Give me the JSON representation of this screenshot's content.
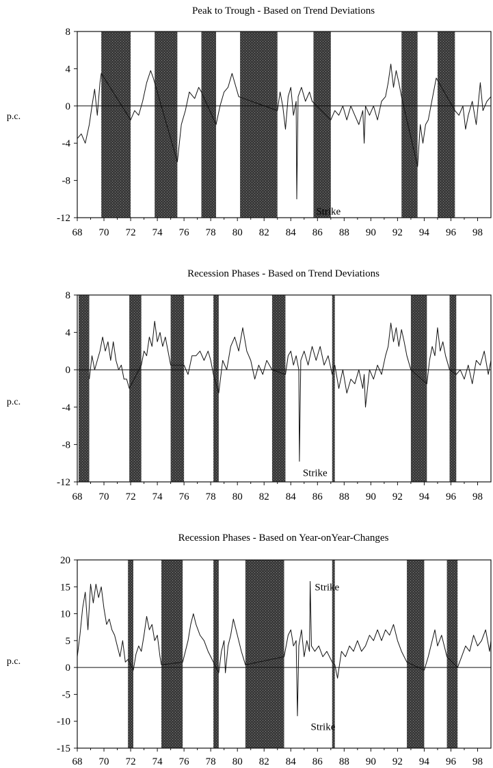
{
  "chart_data": [
    {
      "type": "line",
      "title": "Peak to Trough - Based on Trend Deviations",
      "ylabel": "p.c.",
      "xlim": [
        1968,
        1999
      ],
      "ylim": [
        -12,
        8
      ],
      "yticks": [
        8,
        4,
        0,
        -4,
        -8,
        -12
      ],
      "xticks": [
        68,
        70,
        72,
        74,
        76,
        78,
        80,
        82,
        84,
        86,
        88,
        90,
        92,
        94,
        96,
        98
      ],
      "zero_line": true,
      "shaded_periods": [
        [
          1969.8,
          1972.0
        ],
        [
          1973.8,
          1975.5
        ],
        [
          1977.3,
          1978.4
        ],
        [
          1980.2,
          1983.0
        ],
        [
          1985.7,
          1987.0
        ],
        [
          1992.3,
          1993.5
        ],
        [
          1995.0,
          1996.3
        ]
      ],
      "annotations": [
        {
          "text": "Strike",
          "x": 1985.9,
          "y": -11.3
        }
      ],
      "series": [
        {
          "x": [
            1968.0,
            1968.3,
            1968.6,
            1968.9,
            1969.1,
            1969.3,
            1969.5,
            1969.7,
            1969.8,
            1972.0,
            1972.3,
            1972.6,
            1972.9,
            1973.2,
            1973.5,
            1973.7,
            1975.5,
            1975.8,
            1976.1,
            1976.4,
            1976.8,
            1977.1,
            1977.3,
            1978.4,
            1978.7,
            1979.0,
            1979.3,
            1979.6,
            1979.9,
            1980.1,
            1983.0,
            1983.2,
            1983.4,
            1983.6,
            1983.8,
            1984.0,
            1984.2,
            1984.4,
            1984.45,
            1984.55,
            1984.8,
            1985.1,
            1985.4,
            1985.6,
            1987.0,
            1987.3,
            1987.6,
            1987.9,
            1988.2,
            1988.5,
            1988.8,
            1989.1,
            1989.4,
            1989.5,
            1989.6,
            1989.9,
            1990.2,
            1990.5,
            1990.8,
            1991.1,
            1991.3,
            1991.5,
            1991.7,
            1991.9,
            1992.1,
            1992.3,
            1993.5,
            1993.7,
            1993.9,
            1994.1,
            1994.3,
            1994.5,
            1994.7,
            1994.9,
            1996.3,
            1996.6,
            1996.9,
            1997.1,
            1997.3,
            1997.6,
            1997.9,
            1998.2,
            1998.4,
            1998.7,
            1999.0
          ],
          "y": [
            -3.5,
            -3.0,
            -4.0,
            -2.0,
            0.0,
            1.8,
            -1.0,
            2.5,
            3.5,
            -1.5,
            -0.5,
            -1.0,
            0.5,
            2.5,
            3.8,
            3.0,
            -6.0,
            -2.0,
            -0.5,
            1.5,
            0.8,
            2.0,
            1.5,
            -2.0,
            0.0,
            1.5,
            2.0,
            3.5,
            2.0,
            1.0,
            -0.5,
            1.5,
            0.0,
            -2.5,
            1.0,
            2.0,
            -1.0,
            0.5,
            -10.0,
            1.0,
            2.0,
            0.5,
            1.5,
            0.5,
            -1.5,
            -0.5,
            -1.0,
            0.0,
            -1.5,
            0.0,
            -1.0,
            -2.0,
            -0.5,
            -4.0,
            0.0,
            -1.0,
            0.0,
            -1.5,
            0.5,
            1.0,
            2.5,
            4.5,
            2.0,
            3.8,
            2.5,
            1.0,
            -6.5,
            -2.0,
            -4.0,
            -2.0,
            -1.5,
            0.0,
            1.5,
            3.0,
            -0.5,
            -1.0,
            0.0,
            -2.5,
            -1.0,
            0.5,
            -2.0,
            2.5,
            -0.5,
            0.5,
            1.0
          ]
        }
      ]
    },
    {
      "type": "line",
      "title": "Recession Phases - Based on Trend Deviations",
      "ylabel": "p.c.",
      "xlim": [
        1968,
        1999
      ],
      "ylim": [
        -12,
        8
      ],
      "yticks": [
        8,
        4,
        0,
        -4,
        -8,
        -12
      ],
      "xticks": [
        68,
        70,
        72,
        74,
        76,
        78,
        80,
        82,
        84,
        86,
        88,
        90,
        92,
        94,
        96,
        98
      ],
      "zero_line": true,
      "shaded_periods": [
        [
          1968.1,
          1968.9
        ],
        [
          1971.9,
          1972.8
        ],
        [
          1975.0,
          1976.0
        ],
        [
          1978.2,
          1978.6
        ],
        [
          1982.6,
          1983.6
        ],
        [
          1987.1,
          1987.3
        ],
        [
          1993.0,
          1994.2
        ],
        [
          1995.9,
          1996.4
        ]
      ],
      "annotations": [
        {
          "text": "Strike",
          "x": 1984.9,
          "y": -11.0
        }
      ],
      "series": [
        {
          "x": [
            1968.9,
            1969.1,
            1969.3,
            1969.5,
            1969.7,
            1969.9,
            1970.1,
            1970.3,
            1970.5,
            1970.7,
            1970.9,
            1971.1,
            1971.3,
            1971.5,
            1971.7,
            1971.9,
            1972.8,
            1973.0,
            1973.2,
            1973.4,
            1973.6,
            1973.8,
            1974.0,
            1974.2,
            1974.4,
            1974.6,
            1974.8,
            1975.0,
            1976.0,
            1976.3,
            1976.6,
            1976.9,
            1977.2,
            1977.5,
            1977.8,
            1978.0,
            1978.2,
            1978.6,
            1978.9,
            1979.2,
            1979.5,
            1979.8,
            1980.1,
            1980.4,
            1980.7,
            1981.0,
            1981.3,
            1981.6,
            1981.9,
            1982.2,
            1982.6,
            1983.6,
            1983.8,
            1984.0,
            1984.2,
            1984.4,
            1984.6,
            1984.65,
            1984.75,
            1985.0,
            1985.3,
            1985.6,
            1985.9,
            1986.2,
            1986.5,
            1986.8,
            1987.1,
            1987.3,
            1987.6,
            1987.9,
            1988.2,
            1988.5,
            1988.8,
            1989.1,
            1989.4,
            1989.5,
            1989.6,
            1989.9,
            1990.2,
            1990.5,
            1990.8,
            1991.1,
            1991.3,
            1991.5,
            1991.7,
            1991.9,
            1992.1,
            1992.3,
            1992.5,
            1992.7,
            1993.0,
            1994.2,
            1994.4,
            1994.6,
            1994.8,
            1995.0,
            1995.2,
            1995.4,
            1995.6,
            1995.9,
            1996.4,
            1996.7,
            1997.0,
            1997.3,
            1997.6,
            1997.9,
            1998.2,
            1998.5,
            1998.8,
            1999.0
          ],
          "y": [
            -1.0,
            1.5,
            0.0,
            1.0,
            2.0,
            3.5,
            2.0,
            3.0,
            1.0,
            3.0,
            1.0,
            0.0,
            0.5,
            -1.0,
            -1.0,
            -2.0,
            0.5,
            2.0,
            1.5,
            3.5,
            2.5,
            5.2,
            3.0,
            4.0,
            2.5,
            3.5,
            2.0,
            0.5,
            0.5,
            -0.5,
            1.5,
            1.5,
            2.0,
            1.0,
            2.0,
            1.0,
            -0.5,
            -2.5,
            1.0,
            0.0,
            2.5,
            3.5,
            2.0,
            4.5,
            2.0,
            1.0,
            -1.0,
            0.5,
            -0.5,
            1.0,
            0.0,
            -0.5,
            1.5,
            2.0,
            0.5,
            1.5,
            0.0,
            -9.8,
            1.0,
            2.0,
            0.5,
            2.5,
            1.0,
            2.5,
            0.5,
            1.5,
            -0.5,
            0.5,
            -2.0,
            0.0,
            -2.5,
            -1.0,
            -1.5,
            0.0,
            -2.0,
            -0.5,
            -4.0,
            0.0,
            -1.0,
            0.5,
            -0.5,
            1.5,
            2.5,
            5.0,
            3.0,
            4.5,
            2.5,
            4.3,
            3.0,
            1.5,
            0.0,
            -1.5,
            1.0,
            2.5,
            1.5,
            4.5,
            2.0,
            3.0,
            1.5,
            0.0,
            -0.5,
            0.0,
            -1.0,
            0.5,
            -1.5,
            1.0,
            0.5,
            2.0,
            -0.5,
            1.0
          ]
        }
      ]
    },
    {
      "type": "line",
      "title": "Recession Phases - Based on Year-onYear-Changes",
      "ylabel": "p.c.",
      "xlim": [
        1968,
        1999
      ],
      "ylim": [
        -15,
        20
      ],
      "yticks": [
        20,
        15,
        10,
        5,
        0,
        -5,
        -10,
        -15
      ],
      "xticks": [
        68,
        70,
        72,
        74,
        76,
        78,
        80,
        82,
        84,
        86,
        88,
        90,
        92,
        94,
        96,
        98
      ],
      "zero_line": true,
      "shaded_periods": [
        [
          1971.8,
          1972.2
        ],
        [
          1974.3,
          1975.9
        ],
        [
          1978.2,
          1978.6
        ],
        [
          1980.6,
          1983.5
        ],
        [
          1987.1,
          1987.3
        ],
        [
          1992.7,
          1994.0
        ],
        [
          1995.7,
          1996.5
        ]
      ],
      "annotations": [
        {
          "text": "Strike",
          "x": 1985.8,
          "y": 15.0
        },
        {
          "text": "Strike",
          "x": 1985.5,
          "y": -11.0
        }
      ],
      "series": [
        {
          "x": [
            1968.0,
            1968.2,
            1968.4,
            1968.6,
            1968.8,
            1969.0,
            1969.2,
            1969.4,
            1969.6,
            1969.8,
            1970.0,
            1970.2,
            1970.4,
            1970.6,
            1970.8,
            1971.0,
            1971.2,
            1971.4,
            1971.6,
            1971.8,
            1972.2,
            1972.4,
            1972.6,
            1972.8,
            1973.0,
            1973.2,
            1973.4,
            1973.6,
            1973.8,
            1974.0,
            1974.2,
            1974.3,
            1975.9,
            1976.1,
            1976.3,
            1976.5,
            1976.7,
            1976.9,
            1977.2,
            1977.5,
            1977.8,
            1978.0,
            1978.2,
            1978.6,
            1978.8,
            1979.0,
            1979.1,
            1979.3,
            1979.5,
            1979.7,
            1979.9,
            1980.1,
            1980.3,
            1980.6,
            1983.5,
            1983.8,
            1984.0,
            1984.2,
            1984.4,
            1984.5,
            1984.6,
            1984.8,
            1985.0,
            1985.2,
            1985.4,
            1985.45,
            1985.55,
            1985.8,
            1986.1,
            1986.4,
            1986.7,
            1987.1,
            1987.3,
            1987.5,
            1987.8,
            1988.1,
            1988.4,
            1988.7,
            1989.0,
            1989.3,
            1989.6,
            1989.9,
            1990.2,
            1990.5,
            1990.8,
            1991.1,
            1991.4,
            1991.7,
            1992.0,
            1992.3,
            1992.7,
            1994.0,
            1994.3,
            1994.6,
            1994.8,
            1995.0,
            1995.3,
            1995.7,
            1996.5,
            1996.8,
            1997.1,
            1997.4,
            1997.7,
            1998.0,
            1998.3,
            1998.6,
            1998.9,
            1999.0
          ],
          "y": [
            2.0,
            6.0,
            11.0,
            14.0,
            7.0,
            15.5,
            12.0,
            15.5,
            13.0,
            15.0,
            11.0,
            8.0,
            9.0,
            7.0,
            6.0,
            4.0,
            2.0,
            5.0,
            1.0,
            1.5,
            -0.5,
            2.5,
            4.0,
            3.0,
            6.0,
            9.5,
            7.0,
            8.0,
            5.0,
            6.0,
            2.0,
            0.5,
            1.0,
            3.0,
            5.0,
            8.0,
            10.0,
            8.0,
            6.0,
            5.0,
            3.0,
            2.0,
            1.0,
            -1.0,
            3.0,
            5.0,
            -1.0,
            4.0,
            6.0,
            9.0,
            7.0,
            5.0,
            3.0,
            0.5,
            2.0,
            6.0,
            7.0,
            4.0,
            5.0,
            -9.0,
            4.0,
            7.0,
            2.0,
            5.0,
            3.0,
            16.0,
            4.0,
            3.0,
            4.0,
            2.0,
            3.0,
            1.0,
            0.5,
            -2.0,
            3.0,
            2.0,
            4.0,
            3.0,
            5.0,
            3.0,
            4.0,
            6.0,
            5.0,
            7.0,
            5.0,
            7.0,
            6.0,
            8.0,
            5.0,
            3.0,
            1.0,
            -0.5,
            2.0,
            5.0,
            7.0,
            4.0,
            6.0,
            2.0,
            0.0,
            2.0,
            4.0,
            3.0,
            6.0,
            4.0,
            5.0,
            7.0,
            3.0,
            5.0
          ]
        }
      ]
    }
  ]
}
